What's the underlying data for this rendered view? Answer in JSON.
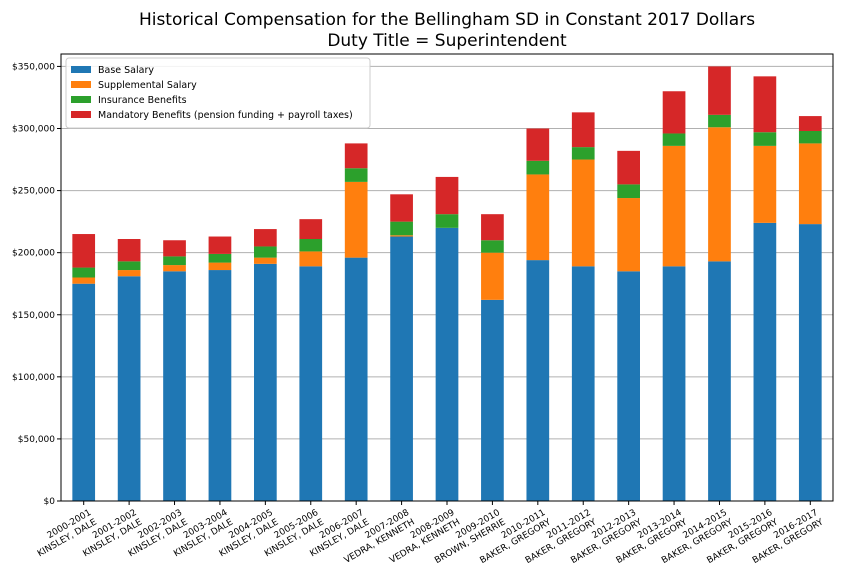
{
  "chart_data": {
    "type": "bar",
    "stacked": true,
    "title": "Historical Compensation for the Bellingham SD in Constant 2017 Dollars",
    "subtitle": "Duty Title = Superintendent",
    "xlabel": "",
    "ylabel": "",
    "ylim": [
      0,
      360000
    ],
    "yticks": [
      0,
      50000,
      100000,
      150000,
      200000,
      250000,
      300000,
      350000
    ],
    "ytick_labels": [
      "$0",
      "$50,000",
      "$100,000",
      "$150,000",
      "$200,000",
      "$250,000",
      "$300,000",
      "$350,000"
    ],
    "grid": "y",
    "legend_position": "top-left",
    "categories": [
      [
        "2000-2001",
        "KINSLEY, DALE"
      ],
      [
        "2001-2002",
        "KINSLEY, DALE"
      ],
      [
        "2002-2003",
        "KINSLEY, DALE"
      ],
      [
        "2003-2004",
        "KINSLEY, DALE"
      ],
      [
        "2004-2005",
        "KINSLEY, DALE"
      ],
      [
        "2005-2006",
        "KINSLEY, DALE"
      ],
      [
        "2006-2007",
        "KINSLEY, DALE"
      ],
      [
        "2007-2008",
        "VEDRA, KENNETH"
      ],
      [
        "2008-2009",
        "VEDRA, KENNETH"
      ],
      [
        "2009-2010",
        "BROWN, SHERRIE"
      ],
      [
        "2010-2011",
        "BAKER, GREGORY"
      ],
      [
        "2011-2012",
        "BAKER, GREGORY"
      ],
      [
        "2012-2013",
        "BAKER, GREGORY"
      ],
      [
        "2013-2014",
        "BAKER, GREGORY"
      ],
      [
        "2014-2015",
        "BAKER, GREGORY"
      ],
      [
        "2015-2016",
        "BAKER, GREGORY"
      ],
      [
        "2016-2017",
        "BAKER, GREGORY"
      ]
    ],
    "series": [
      {
        "name": "Base Salary",
        "color": "#1f77b4",
        "values": [
          175000,
          181000,
          185000,
          186000,
          191000,
          189000,
          196000,
          213000,
          220000,
          162000,
          194000,
          189000,
          185000,
          189000,
          193000,
          224000,
          223000
        ]
      },
      {
        "name": "Supplemental Salary",
        "color": "#ff7f0e",
        "values": [
          5000,
          5000,
          5000,
          6000,
          5000,
          12000,
          61000,
          1000,
          0,
          38000,
          69000,
          86000,
          59000,
          97000,
          108000,
          62000,
          65000
        ]
      },
      {
        "name": "Insurance Benefits",
        "color": "#2ca02c",
        "values": [
          8000,
          7000,
          7000,
          7000,
          9000,
          10000,
          11000,
          11000,
          11000,
          10000,
          11000,
          10000,
          11000,
          10000,
          10000,
          11000,
          10000
        ]
      },
      {
        "name": "Mandatory Benefits (pension funding + payroll taxes)",
        "color": "#d62728",
        "values": [
          27000,
          18000,
          13000,
          14000,
          14000,
          16000,
          20000,
          22000,
          30000,
          21000,
          26000,
          28000,
          27000,
          34000,
          39000,
          45000,
          12000
        ]
      }
    ]
  }
}
